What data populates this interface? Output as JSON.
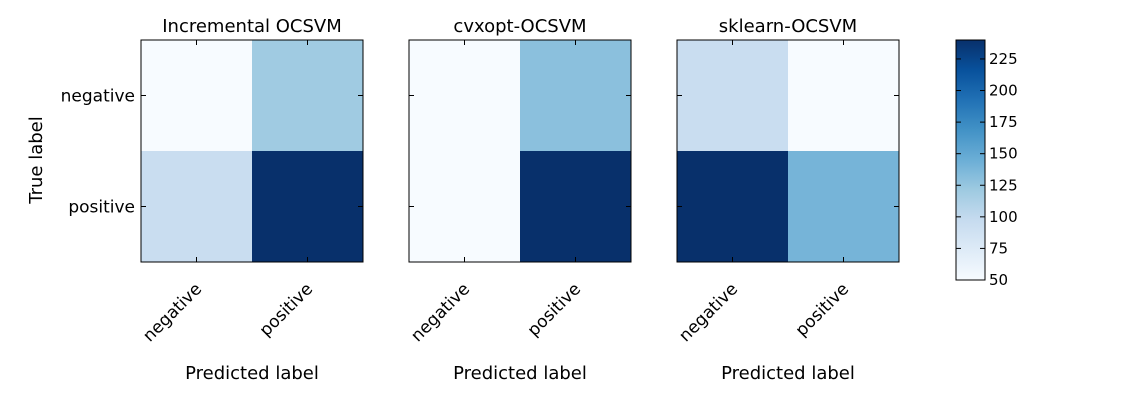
{
  "chart_data": {
    "type": "heatmap",
    "ylabel": "True label",
    "row_labels": [
      "negative",
      "positive"
    ],
    "col_labels": [
      "negative",
      "positive"
    ],
    "panels": [
      {
        "title": "Incremental OCSVM",
        "xlabel": "Predicted label",
        "values": [
          [
            50,
            120
          ],
          [
            95,
            240
          ]
        ]
      },
      {
        "title": "cvxopt-OCSVM",
        "xlabel": "Predicted label",
        "values": [
          [
            50,
            130
          ],
          [
            50,
            240
          ]
        ]
      },
      {
        "title": "sklearn-OCSVM",
        "xlabel": "Predicted label",
        "values": [
          [
            95,
            50
          ],
          [
            240,
            140
          ]
        ]
      }
    ],
    "colorbar": {
      "vmin": 50,
      "vmax": 240,
      "ticks": [
        50,
        75,
        100,
        125,
        150,
        175,
        200,
        225
      ],
      "colormap": "Blues"
    }
  }
}
